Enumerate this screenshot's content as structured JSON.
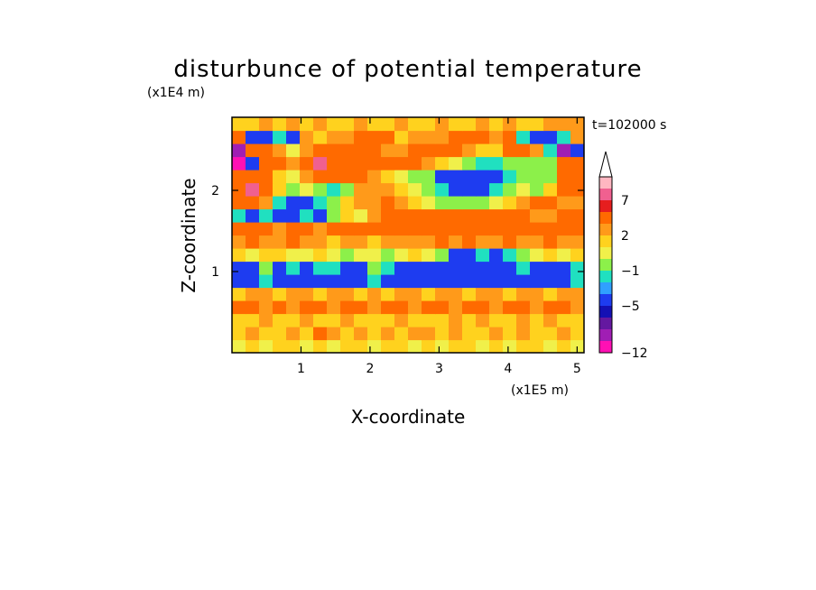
{
  "chart_data": {
    "type": "heatmap",
    "title": "disturbunce of potential temperature",
    "xlabel": "X-coordinate",
    "ylabel": "Z-coordinate",
    "x_unit": "(x1E5 m)",
    "y_unit": "(x1E4 m)",
    "time_label": "t=102000 s",
    "xlim": [
      0,
      5.1
    ],
    "ylim": [
      0,
      2.9
    ],
    "x_ticks": [
      "1",
      "2",
      "3",
      "4",
      "5"
    ],
    "y_ticks": [
      "1",
      "2"
    ],
    "colorbar": {
      "labels": [
        "7",
        "2",
        "−1",
        "−5",
        "−12"
      ],
      "colors": [
        "#ffb6c1",
        "#f06090",
        "#e61e1e",
        "#ff6a00",
        "#ff9a1a",
        "#ffd21e",
        "#f0f04a",
        "#8cf04a",
        "#20e0c0",
        "#30a0ff",
        "#1e3cf0",
        "#1410b4",
        "#6418a0",
        "#a01eb4",
        "#ff10b4"
      ],
      "extend_top": true
    },
    "z_grid": [
      [
        0,
        1,
        0,
        1,
        1,
        0,
        1,
        0,
        1,
        1,
        0,
        1,
        1,
        0,
        1,
        0,
        1,
        1,
        0,
        1,
        0,
        1,
        1,
        0,
        1,
        0
      ],
      [
        1,
        2,
        1,
        1,
        2,
        1,
        4,
        2,
        1,
        2,
        1,
        2,
        1,
        2,
        2,
        1,
        2,
        1,
        1,
        2,
        1,
        2,
        1,
        1,
        2,
        1
      ],
      [
        1,
        1,
        2,
        1,
        1,
        2,
        1,
        1,
        2,
        1,
        1,
        1,
        2,
        1,
        1,
        1,
        2,
        1,
        2,
        1,
        1,
        2,
        1,
        2,
        1,
        1
      ],
      [
        3,
        3,
        2,
        3,
        2,
        3,
        3,
        2,
        3,
        3,
        2,
        3,
        3,
        2,
        3,
        3,
        2,
        3,
        3,
        2,
        3,
        3,
        2,
        3,
        3,
        2
      ],
      [
        1,
        2,
        2,
        1,
        2,
        2,
        1,
        2,
        2,
        1,
        2,
        1,
        2,
        2,
        1,
        2,
        2,
        1,
        2,
        2,
        1,
        2,
        2,
        1,
        2,
        2
      ],
      [
        -5,
        -5,
        -2,
        -5,
        -5,
        -5,
        -5,
        -5,
        -5,
        -5,
        -2,
        -5,
        -5,
        -5,
        -5,
        -5,
        -5,
        -5,
        -5,
        -5,
        -5,
        -5,
        -5,
        -5,
        -5,
        -2
      ],
      [
        -5,
        -5,
        -1,
        -5,
        -2,
        -5,
        -2,
        -2,
        -5,
        -5,
        -1,
        -2,
        -5,
        -5,
        -5,
        -5,
        -5,
        -5,
        -5,
        -5,
        -5,
        -2,
        -5,
        -5,
        -5,
        -2
      ],
      [
        1,
        0,
        1,
        1,
        0,
        0,
        1,
        0,
        -1,
        0,
        0,
        -1,
        0,
        1,
        0,
        -1,
        -5,
        -5,
        -2,
        -5,
        -2,
        -1,
        0,
        1,
        0,
        1
      ],
      [
        2,
        3,
        2,
        2,
        3,
        2,
        2,
        1,
        2,
        2,
        1,
        2,
        2,
        2,
        2,
        3,
        2,
        3,
        2,
        2,
        3,
        2,
        2,
        3,
        2,
        2
      ],
      [
        3,
        3,
        3,
        2,
        3,
        3,
        2,
        3,
        3,
        3,
        3,
        3,
        3,
        3,
        4,
        4,
        3,
        3,
        3,
        4,
        4,
        3,
        3,
        3,
        3,
        3
      ],
      [
        -2,
        -5,
        -2,
        -5,
        -5,
        -2,
        -5,
        -1,
        1,
        0,
        2,
        3,
        3,
        3,
        3,
        3,
        3,
        3,
        3,
        3,
        3,
        3,
        2,
        2,
        3,
        3
      ],
      [
        3,
        3,
        2,
        -2,
        -5,
        -5,
        -2,
        -1,
        1,
        2,
        2,
        3,
        2,
        1,
        0,
        -1,
        -1,
        -1,
        -1,
        0,
        1,
        2,
        3,
        3,
        2,
        2
      ],
      [
        4,
        7,
        3,
        1,
        -1,
        0,
        -1,
        -2,
        -1,
        2,
        2,
        2,
        1,
        0,
        -1,
        -2,
        -5,
        -5,
        -5,
        -2,
        -1,
        0,
        -1,
        1,
        3,
        3
      ],
      [
        4,
        4,
        3,
        1,
        0,
        2,
        3,
        4,
        4,
        3,
        2,
        1,
        0,
        -1,
        -1,
        -5,
        -5,
        -5,
        -5,
        -5,
        -2,
        -1,
        -1,
        -1,
        3,
        4
      ],
      [
        -12,
        -5,
        3,
        3,
        2,
        4,
        7,
        4,
        3,
        3,
        3,
        3,
        3,
        3,
        2,
        1,
        0,
        -1,
        -2,
        -2,
        -1,
        -1,
        -1,
        -1,
        3,
        3
      ],
      [
        -10,
        4,
        3,
        2,
        0,
        2,
        3,
        4,
        4,
        3,
        3,
        2,
        2,
        3,
        3,
        3,
        3,
        2,
        1,
        1,
        3,
        3,
        2,
        -2,
        -10,
        -5
      ],
      [
        3,
        -5,
        -5,
        -2,
        -5,
        2,
        1,
        2,
        2,
        3,
        3,
        3,
        1,
        2,
        2,
        2,
        3,
        3,
        3,
        2,
        3,
        -2,
        -5,
        -5,
        -2,
        2
      ],
      [
        1,
        1,
        2,
        1,
        2,
        1,
        2,
        1,
        1,
        2,
        1,
        1,
        2,
        1,
        1,
        2,
        1,
        1,
        2,
        1,
        2,
        1,
        1,
        2,
        2,
        2
      ]
    ]
  }
}
